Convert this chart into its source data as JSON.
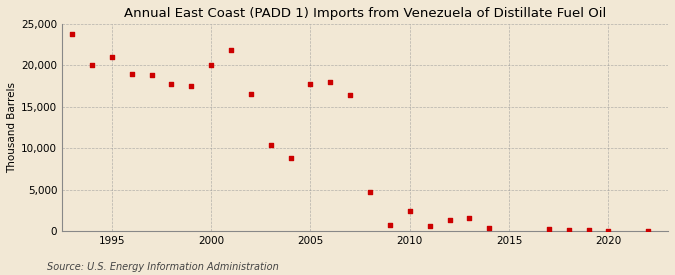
{
  "title": "Annual East Coast (PADD 1) Imports from Venezuela of Distillate Fuel Oil",
  "ylabel": "Thousand Barrels",
  "source": "Source: U.S. Energy Information Administration",
  "background_color": "#f2e8d5",
  "marker_color": "#cc0000",
  "years": [
    1993,
    1994,
    1995,
    1996,
    1997,
    1998,
    1999,
    2000,
    2001,
    2002,
    2003,
    2004,
    2005,
    2006,
    2007,
    2008,
    2009,
    2010,
    2011,
    2012,
    2013,
    2014,
    2017,
    2018,
    2019,
    2020,
    2022
  ],
  "values": [
    23800,
    20100,
    21000,
    19000,
    18800,
    17700,
    17500,
    20000,
    21900,
    16500,
    10400,
    8800,
    17700,
    18000,
    16400,
    4700,
    700,
    2400,
    600,
    1400,
    1600,
    400,
    300,
    200,
    100,
    80,
    50
  ],
  "ylim": [
    0,
    25000
  ],
  "yticks": [
    0,
    5000,
    10000,
    15000,
    20000,
    25000
  ],
  "xlim": [
    1992.5,
    2023
  ],
  "xticks": [
    1995,
    2000,
    2005,
    2010,
    2015,
    2020
  ],
  "title_fontsize": 9.5,
  "label_fontsize": 7.5,
  "tick_fontsize": 7.5,
  "source_fontsize": 7
}
